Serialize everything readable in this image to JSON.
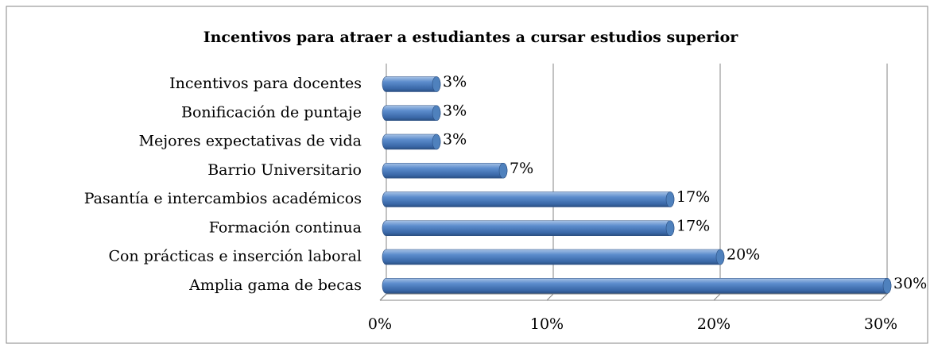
{
  "chart_data": {
    "type": "bar",
    "orientation": "horizontal",
    "title": "Incentivos  para atraer a estudiantes a cursar estudios superior",
    "categories": [
      "Incentivos para docentes",
      "Bonificación de puntaje",
      "Mejores expectativas de vida",
      "Barrio Universitario",
      "Pasantía e intercambios académicos",
      "Formación continua",
      "Con prácticas e inserción laboral",
      "Amplia gama de becas"
    ],
    "values": [
      3,
      3,
      3,
      7,
      17,
      17,
      20,
      30
    ],
    "value_labels": [
      "3%",
      "3%",
      "3%",
      "7%",
      "17%",
      "17%",
      "20%",
      "30%"
    ],
    "color": "#4f81bd",
    "xlim": [
      0,
      30
    ],
    "xticks": [
      {
        "value": 0,
        "label": "0%"
      },
      {
        "value": 10,
        "label": "10%"
      },
      {
        "value": 20,
        "label": "20%"
      },
      {
        "value": 30,
        "label": "30%"
      }
    ],
    "grid": true
  }
}
